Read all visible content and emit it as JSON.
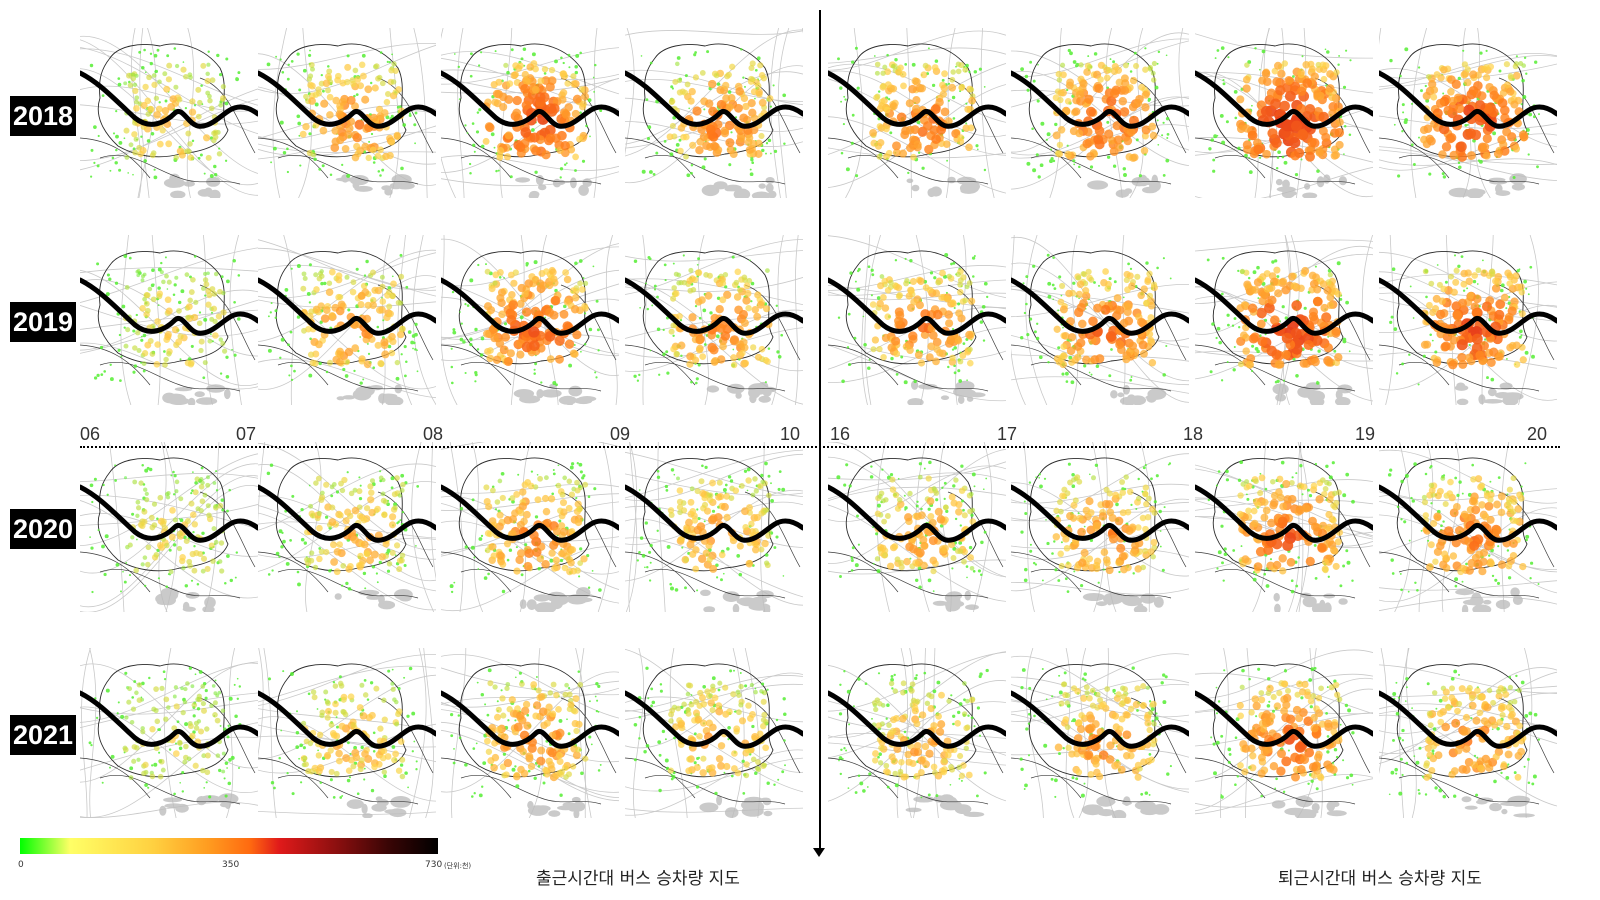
{
  "years": [
    "2018",
    "2019",
    "2020",
    "2021"
  ],
  "morning_hours": [
    "06",
    "07",
    "08",
    "09",
    "10"
  ],
  "evening_hours": [
    "16",
    "17",
    "18",
    "19",
    "20"
  ],
  "captions": {
    "morning": "출근시간대 버스 승차량 지도",
    "evening": "퇴근시간대 버스 승차량 지도"
  },
  "legend": {
    "min": "0",
    "mid": "350",
    "max": "730",
    "unit": "(단위:천)"
  },
  "intensity_levels": [
    [
      0.45,
      0.62,
      0.8,
      0.66,
      0.68,
      0.75,
      0.92,
      0.85
    ],
    [
      0.4,
      0.6,
      0.78,
      0.64,
      0.66,
      0.73,
      0.88,
      0.82
    ],
    [
      0.35,
      0.5,
      0.65,
      0.55,
      0.55,
      0.62,
      0.76,
      0.68
    ],
    [
      0.33,
      0.48,
      0.63,
      0.52,
      0.53,
      0.6,
      0.73,
      0.65
    ]
  ],
  "colors": {
    "low": "#55ee33",
    "mid": "#ffd54a",
    "high": "#ff7a1a",
    "peak": "#e8401a",
    "river": "#000000"
  }
}
